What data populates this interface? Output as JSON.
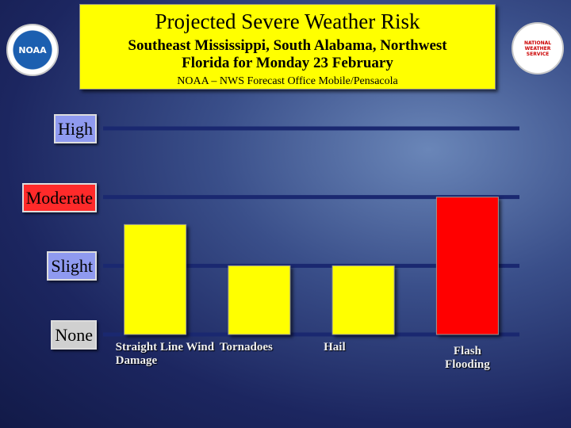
{
  "chart_data": {
    "type": "bar",
    "title": "Projected Severe Weather Risk",
    "subtitle": "Southeast Mississippi, South Alabama, Northwest Florida for Monday 23 February",
    "source": "NOAA – NWS Forecast Office Mobile/Pensacola",
    "logos": [
      "NOAA",
      "NATIONAL WEATHER SERVICE"
    ],
    "categories": [
      "Straight Line Wind Damage",
      "Tornadoes",
      "Hail",
      "Flash Flooding"
    ],
    "values": [
      1.6,
      1,
      1,
      2
    ],
    "colors": [
      "#ffff00",
      "#ffff00",
      "#ffff00",
      "#ff0000"
    ],
    "ylim": [
      0,
      3
    ],
    "yticks": [
      {
        "value": 0,
        "label": "None"
      },
      {
        "value": 1,
        "label": "Slight"
      },
      {
        "value": 2,
        "label": "Moderate"
      },
      {
        "value": 3,
        "label": "High"
      }
    ],
    "grid": true
  }
}
